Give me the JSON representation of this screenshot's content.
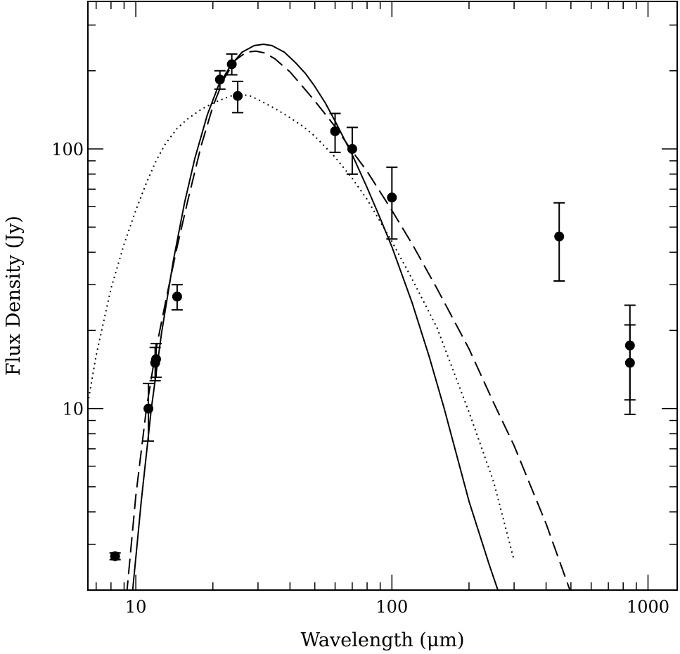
{
  "chart_data": {
    "type": "scatter",
    "title": "",
    "xlabel": "Wavelength (μm)",
    "ylabel": "Flux Density (Jy)",
    "xscale": "log",
    "yscale": "log",
    "xlim": [
      6.5,
      1300
    ],
    "ylim": [
      2.0,
      370
    ],
    "x_tick_labels": [
      {
        "value": 10,
        "label": "10"
      },
      {
        "value": 100,
        "label": "100"
      },
      {
        "value": 1000,
        "label": "1000"
      }
    ],
    "y_tick_labels": [
      {
        "value": 10,
        "label": "10"
      },
      {
        "value": 100,
        "label": "100"
      }
    ],
    "grid": false,
    "legend": "none",
    "colors": {
      "foreground": "#000000",
      "background": "#ffffff"
    },
    "points": [
      {
        "x": 8.3,
        "y": 2.7,
        "yerr_low": 2.62,
        "yerr_high": 2.78
      },
      {
        "x": 11.2,
        "y": 10.0,
        "yerr_low": 7.5,
        "yerr_high": 12.5
      },
      {
        "x": 11.9,
        "y": 15.0,
        "yerr_low": 12.8,
        "yerr_high": 17.2
      },
      {
        "x": 12.0,
        "y": 15.5,
        "yerr_low": 13.2,
        "yerr_high": 17.8
      },
      {
        "x": 14.5,
        "y": 27.0,
        "yerr_low": 24.0,
        "yerr_high": 30.0
      },
      {
        "x": 21.3,
        "y": 185.0,
        "yerr_low": 170.0,
        "yerr_high": 200.0
      },
      {
        "x": 23.7,
        "y": 212.0,
        "yerr_low": 193.0,
        "yerr_high": 232.0
      },
      {
        "x": 25.0,
        "y": 160.0,
        "yerr_low": 138.0,
        "yerr_high": 182.0
      },
      {
        "x": 60.0,
        "y": 117.0,
        "yerr_low": 97.0,
        "yerr_high": 137.0
      },
      {
        "x": 70.0,
        "y": 100.0,
        "yerr_low": 80.0,
        "yerr_high": 121.0
      },
      {
        "x": 100.0,
        "y": 65.0,
        "yerr_low": 45.0,
        "yerr_high": 85.0
      },
      {
        "x": 450.0,
        "y": 46.0,
        "yerr_low": 31.0,
        "yerr_high": 62.0
      },
      {
        "x": 850.0,
        "y": 17.5,
        "yerr_low": 10.8,
        "yerr_high": 21.0
      },
      {
        "x": 850.0,
        "y": 15.0,
        "yerr_low": 9.5,
        "yerr_high": 25.0
      }
    ],
    "series": [
      {
        "style": "solid",
        "x": [
          9.7,
          10.5,
          11.5,
          12.6,
          14,
          15.5,
          17,
          19,
          21,
          23.5,
          26,
          29,
          31.5,
          34,
          38,
          42,
          46,
          50,
          55,
          60,
          70,
          80,
          90,
          100,
          120,
          140,
          160,
          200,
          240,
          280
        ],
        "y": [
          1.95,
          4.4,
          10.0,
          19.5,
          37,
          62,
          92,
          135,
          175,
          210,
          236,
          250,
          253,
          250,
          236,
          215,
          195,
          174,
          150,
          128,
          95,
          71,
          54,
          42,
          25.5,
          15.8,
          10.0,
          4.4,
          2.5,
          1.6
        ]
      },
      {
        "style": "dashed",
        "x": [
          9.2,
          10,
          11,
          12,
          13.2,
          14.5,
          16,
          18,
          20,
          22,
          24.5,
          27,
          29.5,
          32,
          35,
          40,
          45,
          50,
          60,
          70,
          80,
          100,
          120,
          150,
          200,
          250,
          300,
          400,
          500
        ],
        "y": [
          1.9,
          4.6,
          10.0,
          17.0,
          27,
          42,
          64,
          103,
          146,
          185,
          220,
          236,
          238,
          234,
          222,
          198,
          173,
          153,
          122,
          98,
          82,
          58,
          43,
          29,
          17,
          10.5,
          7.2,
          3.6,
          1.95
        ]
      },
      {
        "style": "dotted",
        "x": [
          6.5,
          7,
          8,
          9,
          10,
          11,
          12,
          13,
          14.5,
          16,
          18,
          20,
          22,
          24,
          26,
          28,
          30,
          35,
          40,
          45,
          50,
          60,
          70,
          80,
          100,
          120,
          150,
          200,
          250,
          300
        ],
        "y": [
          10.5,
          16,
          29,
          43,
          58,
          74,
          90,
          104,
          120,
          131,
          142,
          150,
          156,
          161,
          162,
          160,
          155,
          143,
          132,
          122,
          112,
          93,
          77,
          64,
          44,
          31.5,
          20.5,
          9.7,
          5.2,
          2.6
        ]
      }
    ]
  }
}
